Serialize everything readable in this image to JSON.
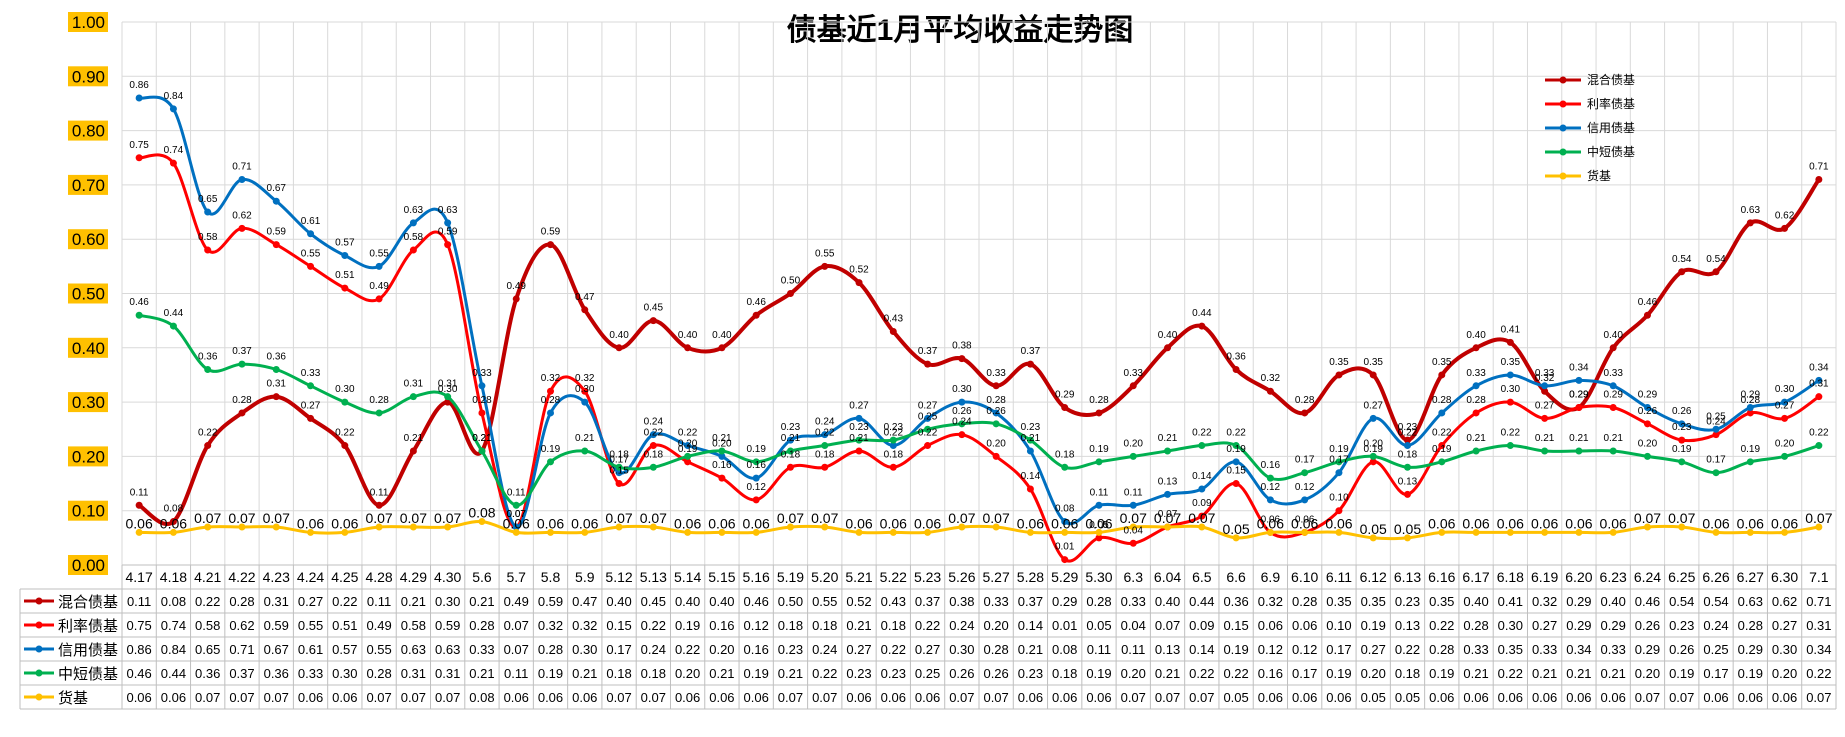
{
  "chart_data": {
    "type": "line",
    "title": "债基近1月平均收益走势图",
    "ylim": [
      0,
      1
    ],
    "yticks": [
      "0.00",
      "0.10",
      "0.20",
      "0.30",
      "0.40",
      "0.50",
      "0.60",
      "0.70",
      "0.80",
      "0.90",
      "1.00"
    ],
    "categories": [
      "4.17",
      "4.18",
      "4.21",
      "4.22",
      "4.23",
      "4.24",
      "4.25",
      "4.28",
      "4.29",
      "4.30",
      "5.6",
      "5.7",
      "5.8",
      "5.9",
      "5.12",
      "5.13",
      "5.14",
      "5.15",
      "5.16",
      "5.19",
      "5.20",
      "5.21",
      "5.22",
      "5.23",
      "5.26",
      "5.27",
      "5.28",
      "5.29",
      "5.30",
      "6.3",
      "6.04",
      "6.5",
      "6.6",
      "6.9",
      "6.10",
      "6.11",
      "6.12",
      "6.13",
      "6.16",
      "6.17",
      "6.18",
      "6.19",
      "6.20",
      "6.23",
      "6.24",
      "6.25",
      "6.26",
      "6.27",
      "6.30",
      "7.1"
    ],
    "grid": true,
    "legend_position": "top-right",
    "data_table": true,
    "series": [
      {
        "name": "混合债基",
        "color": "#c00000",
        "values": [
          0.11,
          0.08,
          0.22,
          0.28,
          0.31,
          0.27,
          0.22,
          0.11,
          0.21,
          0.3,
          0.21,
          0.49,
          0.59,
          0.47,
          0.4,
          0.45,
          0.4,
          0.4,
          0.46,
          0.5,
          0.55,
          0.52,
          0.43,
          0.37,
          0.38,
          0.33,
          0.37,
          0.29,
          0.28,
          0.33,
          0.4,
          0.44,
          0.36,
          0.32,
          0.28,
          0.35,
          0.35,
          0.23,
          0.35,
          0.4,
          0.41,
          0.32,
          0.29,
          0.4,
          0.46,
          0.54,
          0.54,
          0.63,
          0.62,
          0.71
        ]
      },
      {
        "name": "利率债基",
        "color": "#ff0000",
        "values": [
          0.75,
          0.74,
          0.58,
          0.62,
          0.59,
          0.55,
          0.51,
          0.49,
          0.58,
          0.59,
          0.28,
          0.07,
          0.32,
          0.32,
          0.15,
          0.22,
          0.19,
          0.16,
          0.12,
          0.18,
          0.18,
          0.21,
          0.18,
          0.22,
          0.24,
          0.2,
          0.14,
          0.01,
          0.05,
          0.04,
          0.07,
          0.09,
          0.15,
          0.06,
          0.06,
          0.1,
          0.19,
          0.13,
          0.22,
          0.28,
          0.3,
          0.27,
          0.29,
          0.29,
          0.26,
          0.23,
          0.24,
          0.28,
          0.27,
          0.31
        ]
      },
      {
        "name": "信用债基",
        "color": "#0070c0",
        "values": [
          0.86,
          0.84,
          0.65,
          0.71,
          0.67,
          0.61,
          0.57,
          0.55,
          0.63,
          0.63,
          0.33,
          0.07,
          0.28,
          0.3,
          0.17,
          0.24,
          0.22,
          0.2,
          0.16,
          0.23,
          0.24,
          0.27,
          0.22,
          0.27,
          0.3,
          0.28,
          0.21,
          0.08,
          0.11,
          0.11,
          0.13,
          0.14,
          0.19,
          0.12,
          0.12,
          0.17,
          0.27,
          0.22,
          0.28,
          0.33,
          0.35,
          0.33,
          0.34,
          0.33,
          0.29,
          0.26,
          0.25,
          0.29,
          0.3,
          0.34
        ]
      },
      {
        "name": "中短债基",
        "color": "#00b050",
        "values": [
          0.46,
          0.44,
          0.36,
          0.37,
          0.36,
          0.33,
          0.3,
          0.28,
          0.31,
          0.31,
          0.21,
          0.11,
          0.19,
          0.21,
          0.18,
          0.18,
          0.2,
          0.21,
          0.19,
          0.21,
          0.22,
          0.23,
          0.23,
          0.25,
          0.26,
          0.26,
          0.23,
          0.18,
          0.19,
          0.2,
          0.21,
          0.22,
          0.22,
          0.16,
          0.17,
          0.19,
          0.2,
          0.18,
          0.19,
          0.21,
          0.22,
          0.21,
          0.21,
          0.21,
          0.2,
          0.19,
          0.17,
          0.19,
          0.2,
          0.22
        ]
      },
      {
        "name": "货基",
        "color": "#ffc000",
        "values": [
          0.06,
          0.06,
          0.07,
          0.07,
          0.07,
          0.06,
          0.06,
          0.07,
          0.07,
          0.07,
          0.08,
          0.06,
          0.06,
          0.06,
          0.07,
          0.07,
          0.06,
          0.06,
          0.06,
          0.07,
          0.07,
          0.06,
          0.06,
          0.06,
          0.07,
          0.07,
          0.06,
          0.06,
          0.06,
          0.07,
          0.07,
          0.07,
          0.05,
          0.06,
          0.06,
          0.06,
          0.05,
          0.05,
          0.06,
          0.06,
          0.06,
          0.06,
          0.06,
          0.06,
          0.07,
          0.07,
          0.06,
          0.06,
          0.06,
          0.07
        ]
      }
    ]
  }
}
